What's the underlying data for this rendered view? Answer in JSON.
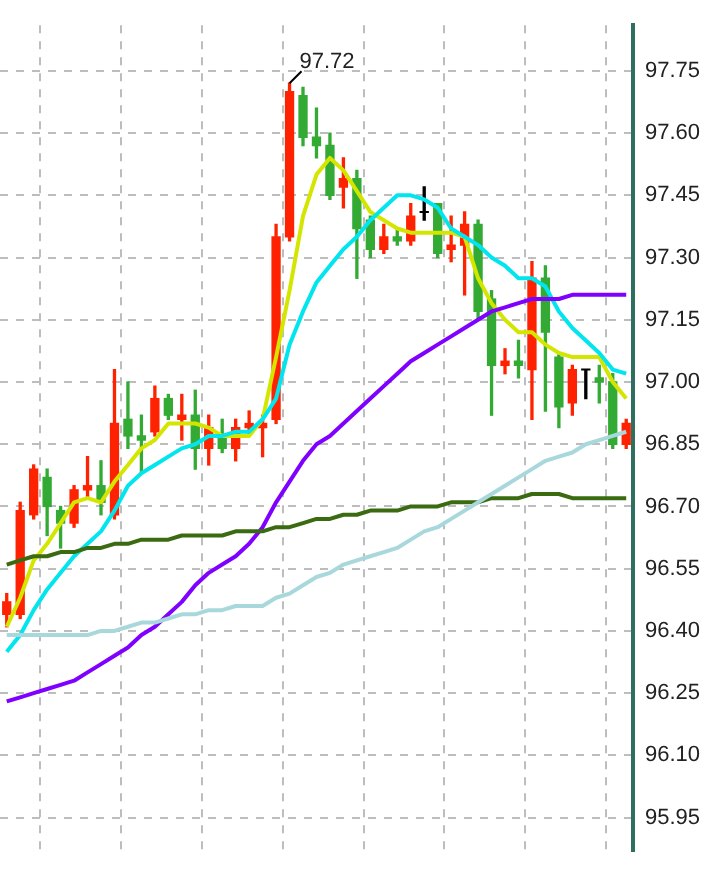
{
  "chart_data": {
    "type": "candlestick",
    "categories": [
      null,
      null,
      null,
      null,
      null,
      null,
      null,
      null,
      null,
      null,
      null,
      null,
      null,
      null,
      null,
      null,
      null,
      null,
      null,
      null,
      null,
      null,
      null,
      null,
      null,
      null,
      null,
      null,
      null,
      null,
      null,
      null,
      null,
      null,
      null,
      null,
      null,
      null,
      null,
      null,
      null,
      null,
      null,
      null,
      null,
      null,
      null
    ],
    "ohlc": [
      [
        96.44,
        96.49,
        96.41,
        96.47
      ],
      [
        96.44,
        96.71,
        96.43,
        96.69
      ],
      [
        96.68,
        96.8,
        96.67,
        96.79
      ],
      [
        96.77,
        96.79,
        96.63,
        96.7
      ],
      [
        96.69,
        96.7,
        96.6,
        96.66
      ],
      [
        96.66,
        96.75,
        96.65,
        96.74
      ],
      [
        96.74,
        96.82,
        96.72,
        96.75
      ],
      [
        96.75,
        96.81,
        96.68,
        96.71
      ],
      [
        96.68,
        97.03,
        96.67,
        96.9
      ],
      [
        96.91,
        97.0,
        96.84,
        96.87
      ],
      [
        96.87,
        96.92,
        96.78,
        96.86
      ],
      [
        96.88,
        96.99,
        96.87,
        96.96
      ],
      [
        96.96,
        96.97,
        96.91,
        96.92
      ],
      [
        96.91,
        96.97,
        96.86,
        96.92
      ],
      [
        96.92,
        96.98,
        96.79,
        96.84
      ],
      [
        96.84,
        96.92,
        96.8,
        96.89
      ],
      [
        96.87,
        96.91,
        96.83,
        96.84
      ],
      [
        96.84,
        96.91,
        96.81,
        96.89
      ],
      [
        96.89,
        96.93,
        96.87,
        96.9
      ],
      [
        96.89,
        96.92,
        96.82,
        96.9
      ],
      [
        96.91,
        97.38,
        96.9,
        97.35
      ],
      [
        97.35,
        97.72,
        97.34,
        97.7
      ],
      [
        97.69,
        97.71,
        97.57,
        97.59
      ],
      [
        97.59,
        97.66,
        97.54,
        97.57
      ],
      [
        97.57,
        97.6,
        97.44,
        97.45
      ],
      [
        97.47,
        97.54,
        97.42,
        97.49
      ],
      [
        97.49,
        97.51,
        97.25,
        97.37
      ],
      [
        97.39,
        97.4,
        97.3,
        97.32
      ],
      [
        97.32,
        97.38,
        97.31,
        97.35
      ],
      [
        97.35,
        97.37,
        97.33,
        97.34
      ],
      [
        97.34,
        97.43,
        97.33,
        97.4
      ],
      [
        97.41,
        97.47,
        97.39,
        97.41
      ],
      [
        97.43,
        97.43,
        97.3,
        97.31
      ],
      [
        97.32,
        97.4,
        97.29,
        97.33
      ],
      [
        97.33,
        97.41,
        97.21,
        97.38
      ],
      [
        97.38,
        97.39,
        97.15,
        97.17
      ],
      [
        97.2,
        97.22,
        96.92,
        97.04
      ],
      [
        97.04,
        97.08,
        97.02,
        97.05
      ],
      [
        97.05,
        97.1,
        97.01,
        97.04
      ],
      [
        97.03,
        97.29,
        96.91,
        97.25
      ],
      [
        97.25,
        97.28,
        96.93,
        97.12
      ],
      [
        97.06,
        97.07,
        96.89,
        96.94
      ],
      [
        96.95,
        97.04,
        96.92,
        97.03
      ],
      [
        97.03,
        97.03,
        96.96,
        97.03
      ],
      [
        97.01,
        97.04,
        96.95,
        97.0
      ],
      [
        97.0,
        97.02,
        96.84,
        96.85
      ],
      [
        96.85,
        96.91,
        96.84,
        96.9
      ]
    ],
    "colors": [
      "#ff2200",
      "#ff2200",
      "#ff2200",
      "#33aa33",
      "#33aa33",
      "#ff2200",
      "#ff2200",
      "#33aa33",
      "#ff2200",
      "#33aa33",
      "#33aa33",
      "#ff2200",
      "#33aa33",
      "#ff2200",
      "#33aa33",
      "#ff2200",
      "#33aa33",
      "#ff2200",
      "#ff2200",
      "#ff2200",
      "#ff2200",
      "#ff2200",
      "#33aa33",
      "#33aa33",
      "#33aa33",
      "#ff2200",
      "#33aa33",
      "#33aa33",
      "#ff2200",
      "#33aa33",
      "#ff2200",
      "#000000",
      "#33aa33",
      "#ff2200",
      "#ff2200",
      "#33aa33",
      "#33aa33",
      "#ff2200",
      "#33aa33",
      "#ff2200",
      "#33aa33",
      "#33aa33",
      "#ff2200",
      "#000000",
      "#33aa33",
      "#33aa33",
      "#ff2200"
    ],
    "series": [
      {
        "type": "line",
        "color": "#a8d8dc",
        "values": [
          96.39,
          96.39,
          96.39,
          96.39,
          96.39,
          96.39,
          96.39,
          96.4,
          96.4,
          96.41,
          96.42,
          96.42,
          96.43,
          96.44,
          96.44,
          96.45,
          96.45,
          96.46,
          96.46,
          96.46,
          96.48,
          96.49,
          96.51,
          96.53,
          96.54,
          96.56,
          96.57,
          96.58,
          96.59,
          96.6,
          96.62,
          96.64,
          96.65,
          96.67,
          96.69,
          96.71,
          96.73,
          96.75,
          96.77,
          96.79,
          96.81,
          96.82,
          96.83,
          96.85,
          96.86,
          96.87,
          96.88
        ]
      },
      {
        "type": "line",
        "color": "#3a6b10",
        "values": [
          96.56,
          96.57,
          96.58,
          96.58,
          96.59,
          96.59,
          96.6,
          96.6,
          96.61,
          96.61,
          96.62,
          96.62,
          96.62,
          96.63,
          96.63,
          96.63,
          96.63,
          96.64,
          96.64,
          96.64,
          96.65,
          96.65,
          96.66,
          96.67,
          96.67,
          96.68,
          96.68,
          96.69,
          96.69,
          96.69,
          96.7,
          96.7,
          96.7,
          96.71,
          96.71,
          96.71,
          96.72,
          96.72,
          96.72,
          96.73,
          96.73,
          96.73,
          96.72,
          96.72,
          96.72,
          96.72,
          96.72
        ]
      },
      {
        "type": "line",
        "color": "#7f00ff",
        "values": [
          96.23,
          96.24,
          96.25,
          96.26,
          96.27,
          96.28,
          96.3,
          96.32,
          96.34,
          96.36,
          96.39,
          96.41,
          96.44,
          96.47,
          96.51,
          96.54,
          96.56,
          96.58,
          96.61,
          96.65,
          96.71,
          96.76,
          96.81,
          96.85,
          96.87,
          96.9,
          96.93,
          96.96,
          96.99,
          97.02,
          97.05,
          97.07,
          97.09,
          97.11,
          97.13,
          97.15,
          97.17,
          97.18,
          97.19,
          97.2,
          97.2,
          97.2,
          97.21,
          97.21,
          97.21,
          97.21,
          97.21
        ]
      },
      {
        "type": "line",
        "color": "#00e5ee",
        "values": [
          96.35,
          96.39,
          96.45,
          96.5,
          96.54,
          96.58,
          96.61,
          96.64,
          96.69,
          96.75,
          96.78,
          96.8,
          96.82,
          96.84,
          96.85,
          96.87,
          96.87,
          96.88,
          96.88,
          96.91,
          96.96,
          97.09,
          97.17,
          97.24,
          97.28,
          97.32,
          97.35,
          97.39,
          97.42,
          97.45,
          97.45,
          97.44,
          97.42,
          97.37,
          97.35,
          97.33,
          97.3,
          97.28,
          97.25,
          97.25,
          97.23,
          97.17,
          97.13,
          97.1,
          97.07,
          97.03,
          97.02
        ]
      },
      {
        "type": "line",
        "color": "#d4e600",
        "values": [
          96.41,
          96.48,
          96.57,
          96.61,
          96.66,
          96.71,
          96.72,
          96.71,
          96.76,
          96.8,
          96.84,
          96.86,
          96.9,
          96.9,
          96.9,
          96.89,
          96.87,
          96.87,
          96.87,
          96.91,
          97.06,
          97.22,
          97.4,
          97.5,
          97.54,
          97.51,
          97.46,
          97.41,
          97.39,
          97.37,
          97.36,
          97.36,
          97.36,
          97.36,
          97.35,
          97.25,
          97.19,
          97.15,
          97.12,
          97.12,
          97.09,
          97.07,
          97.06,
          97.06,
          97.06,
          97.0,
          96.96
        ]
      }
    ],
    "ylim": [
      95.87,
      97.86
    ],
    "yticks": [
      {
        "value": 95.95,
        "label": "95.95"
      },
      {
        "value": 96.1,
        "label": "96.10"
      },
      {
        "value": 96.25,
        "label": "96.25"
      },
      {
        "value": 96.4,
        "label": "96.40"
      },
      {
        "value": 96.55,
        "label": "96.55"
      },
      {
        "value": 96.7,
        "label": "96.70"
      },
      {
        "value": 96.85,
        "label": "96.85"
      },
      {
        "value": 97,
        "label": "97.00"
      },
      {
        "value": 97.15,
        "label": "97.15"
      },
      {
        "value": 97.3,
        "label": "97.30"
      },
      {
        "value": 97.45,
        "label": "97.45"
      },
      {
        "value": 97.6,
        "label": "97.60"
      },
      {
        "value": 97.75,
        "label": "97.75"
      }
    ],
    "grid": true,
    "annotations": [
      "97.72"
    ]
  }
}
